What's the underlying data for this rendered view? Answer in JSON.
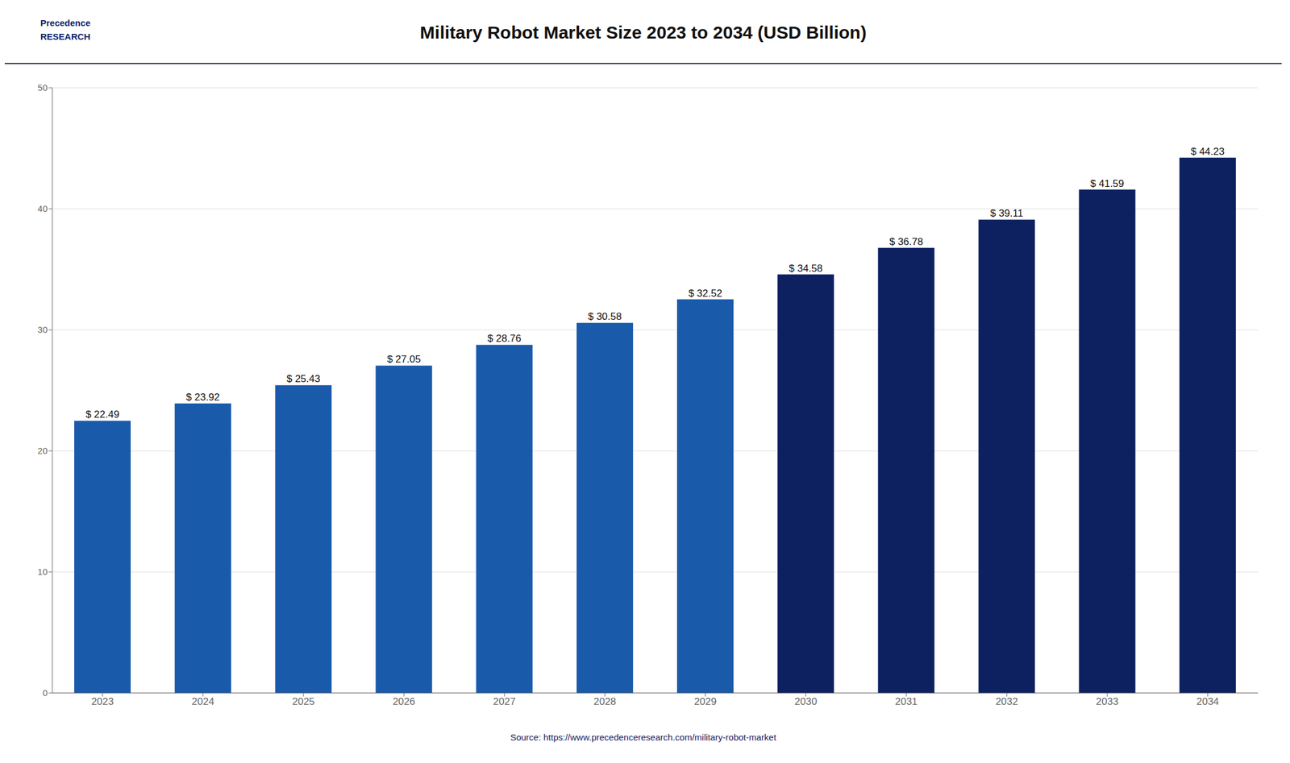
{
  "chart_data": {
    "type": "bar",
    "title": "Military Robot Market Size 2023 to 2034 (USD Billion)",
    "categories": [
      "2023",
      "2024",
      "2025",
      "2026",
      "2027",
      "2028",
      "2029",
      "2030",
      "2031",
      "2032",
      "2033",
      "2034"
    ],
    "values": [
      22.49,
      23.92,
      25.43,
      27.05,
      28.76,
      30.58,
      32.52,
      34.58,
      36.78,
      39.11,
      41.59,
      44.23
    ],
    "value_labels": [
      "$ 22.49",
      "$ 23.92",
      "$ 25.43",
      "$ 27.05",
      "$ 28.76",
      "$ 30.58",
      "$ 32.52",
      "$ 34.58",
      "$ 36.78",
      "$ 39.11",
      "$ 41.59",
      "$ 44.23"
    ],
    "data_labels": true,
    "colors": [
      "#1a5aab",
      "#1a5aab",
      "#1a5aab",
      "#1a5aab",
      "#1a5aab",
      "#1a5aab",
      "#1a5aab",
      "#0d2060",
      "#0d2060",
      "#0d2060",
      "#0d2060",
      "#0d2060"
    ],
    "ylim": [
      0,
      50
    ],
    "yticks": [
      0,
      10,
      20,
      30,
      40,
      50
    ],
    "grid": true,
    "annotations": [
      "Precedence\nRESEARCH",
      "Source: https://www.precedenceresearch.com/military-robot-market"
    ]
  }
}
